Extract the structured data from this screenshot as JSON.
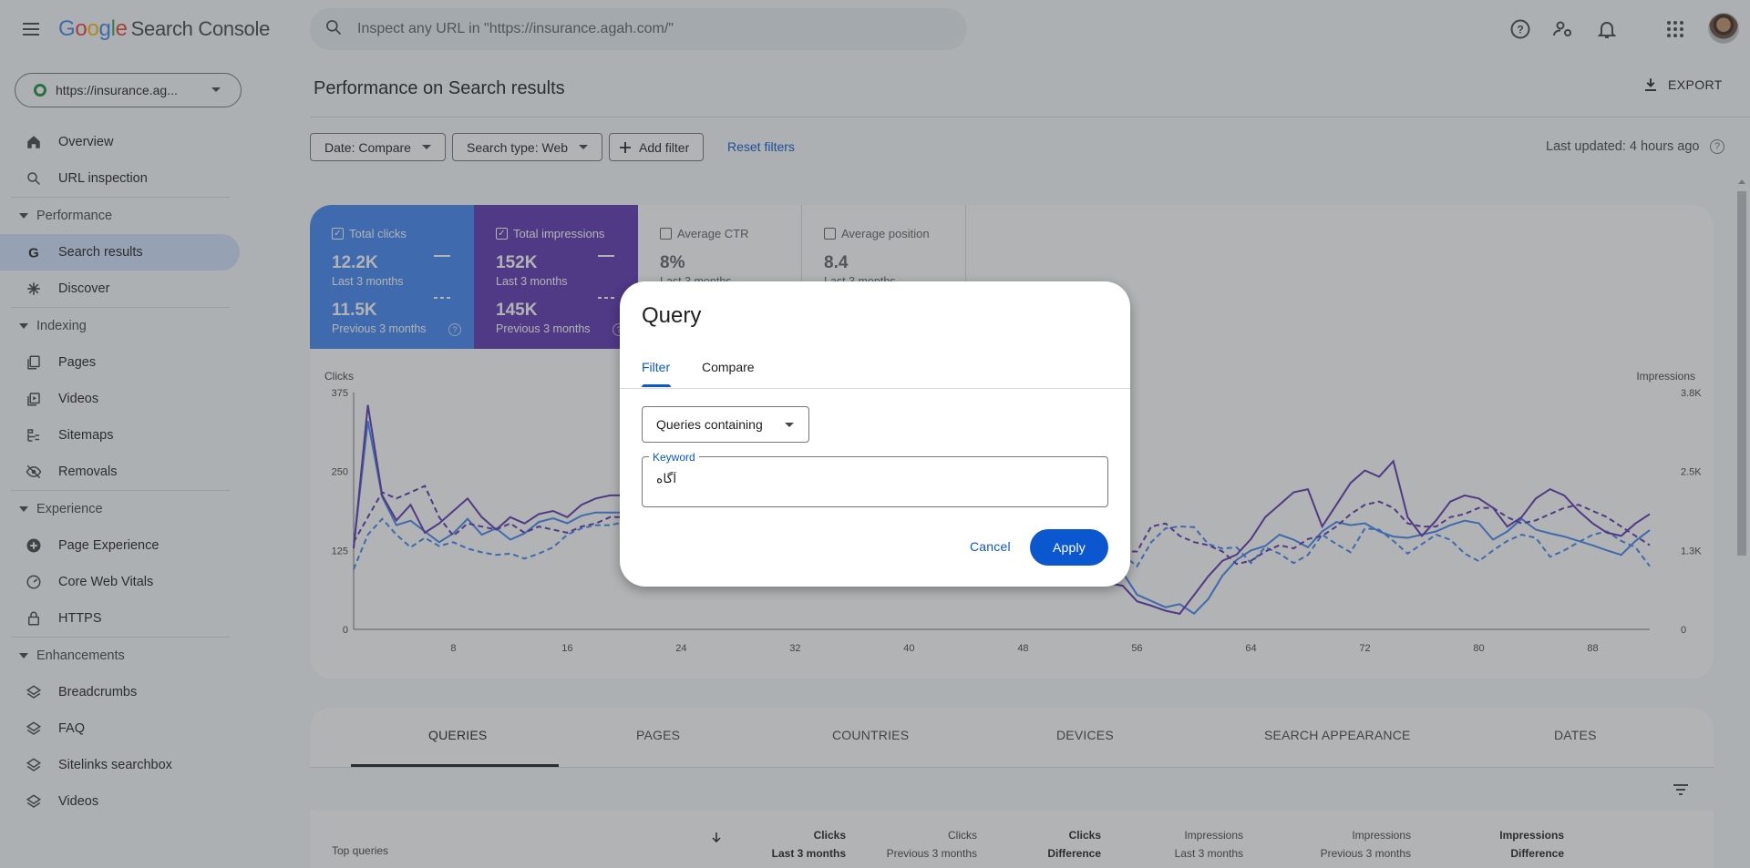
{
  "app": {
    "title": "Search Console",
    "search_placeholder": "Inspect any URL in \"https://insurance.agah.com/\""
  },
  "property": {
    "label": "https://insurance.ag..."
  },
  "sidebar": {
    "items": [
      {
        "label": "Overview",
        "icon": "home-icon"
      },
      {
        "label": "URL inspection",
        "icon": "search-icon"
      }
    ],
    "sections": [
      {
        "title": "Performance",
        "items": [
          {
            "label": "Search results",
            "icon": "google-g-icon",
            "active": true
          },
          {
            "label": "Discover",
            "icon": "asterisk-icon"
          }
        ]
      },
      {
        "title": "Indexing",
        "items": [
          {
            "label": "Pages",
            "icon": "pages-icon"
          },
          {
            "label": "Videos",
            "icon": "video-icon"
          },
          {
            "label": "Sitemaps",
            "icon": "sitemap-icon"
          },
          {
            "label": "Removals",
            "icon": "eye-off-icon"
          }
        ]
      },
      {
        "title": "Experience",
        "items": [
          {
            "label": "Page Experience",
            "icon": "plus-circle-icon"
          },
          {
            "label": "Core Web Vitals",
            "icon": "gauge-icon"
          },
          {
            "label": "HTTPS",
            "icon": "lock-icon"
          }
        ]
      },
      {
        "title": "Enhancements",
        "items": [
          {
            "label": "Breadcrumbs",
            "icon": "layers-icon"
          },
          {
            "label": "FAQ",
            "icon": "layers-icon"
          },
          {
            "label": "Sitelinks searchbox",
            "icon": "layers-icon"
          },
          {
            "label": "Videos",
            "icon": "layers-icon"
          }
        ]
      }
    ]
  },
  "main": {
    "title": "Performance on Search results",
    "export_label": "EXPORT",
    "filters": {
      "date": "Date: Compare",
      "search_type": "Search type: Web",
      "add_filter": "Add filter",
      "reset": "Reset filters"
    },
    "last_updated": "Last updated: 4 hours ago",
    "metrics": [
      {
        "label": "Total clicks",
        "checked": true,
        "current": "12.2K",
        "current_period": "Last 3 months",
        "previous": "11.5K",
        "previous_period": "Previous 3 months"
      },
      {
        "label": "Total impressions",
        "checked": true,
        "current": "152K",
        "current_period": "Last 3 months",
        "previous": "145K",
        "previous_period": "Previous 3 months"
      },
      {
        "label": "Average CTR",
        "checked": false,
        "current": "8%",
        "current_period": "Last 3 months"
      },
      {
        "label": "Average position",
        "checked": false,
        "current": "8.4",
        "current_period": "Last 3 months"
      }
    ],
    "tabs": [
      "QUERIES",
      "PAGES",
      "COUNTRIES",
      "DEVICES",
      "SEARCH APPEARANCE",
      "DATES"
    ],
    "table": {
      "first_col": "Top queries",
      "columns": [
        {
          "line1": "Clicks",
          "line2": "Last 3 months",
          "sorted": true
        },
        {
          "line1": "Clicks",
          "line2": "Previous 3 months"
        },
        {
          "line1": "Clicks",
          "line2": "Difference"
        },
        {
          "line1": "Impressions",
          "line2": "Last 3 months"
        },
        {
          "line1": "Impressions",
          "line2": "Previous 3 months"
        },
        {
          "line1": "Impressions",
          "line2": "Difference"
        }
      ]
    }
  },
  "chart_data": {
    "type": "line",
    "ylabel_left": "Clicks",
    "ylabel_right": "Impressions",
    "yticks_left": [
      "0",
      "125",
      "250",
      "375"
    ],
    "yticks_right": [
      "0",
      "1.3K",
      "2.5K",
      "3.8K"
    ],
    "ylim_left": [
      0,
      375
    ],
    "ylim_right": [
      0,
      3800
    ],
    "xticks": [
      "8",
      "16",
      "24",
      "32",
      "40",
      "48",
      "56",
      "64",
      "72",
      "80",
      "88"
    ],
    "xlim": [
      1,
      92
    ],
    "colors": {
      "clicks": "#4285f4",
      "impressions": "#5e35b1"
    },
    "series": [
      {
        "name": "Clicks",
        "period": "Last 3 months",
        "style": "solid",
        "axis": "left",
        "x": [
          1,
          2,
          3,
          4,
          5,
          6,
          7,
          8,
          9,
          10,
          11,
          12,
          13,
          14,
          15,
          16,
          17,
          18,
          19,
          20,
          21,
          22,
          55,
          56,
          57,
          58,
          59,
          60,
          61,
          62,
          63,
          64,
          65,
          66,
          67,
          68,
          69,
          70,
          71,
          72,
          73,
          74,
          75,
          76,
          77,
          78,
          79,
          80,
          81,
          82,
          83,
          84,
          85,
          86,
          87,
          88,
          89,
          90,
          91,
          92
        ],
        "y": [
          130,
          330,
          210,
          165,
          172,
          155,
          138,
          152,
          175,
          150,
          160,
          142,
          152,
          170,
          176,
          168,
          180,
          185,
          185,
          185,
          182,
          180,
          90,
          55,
          45,
          35,
          40,
          25,
          48,
          85,
          110,
          125,
          132,
          150,
          142,
          130,
          155,
          170,
          165,
          168,
          155,
          147,
          145,
          150,
          155,
          165,
          172,
          168,
          142,
          155,
          175,
          158,
          152,
          147,
          140,
          133,
          125,
          118,
          140,
          157
        ]
      },
      {
        "name": "Clicks",
        "period": "Previous 3 months",
        "style": "dashed",
        "axis": "left",
        "x": [
          1,
          2,
          3,
          4,
          5,
          6,
          7,
          8,
          9,
          10,
          11,
          12,
          13,
          14,
          15,
          16,
          17,
          18,
          19,
          20,
          21,
          22,
          55,
          56,
          57,
          58,
          59,
          60,
          61,
          62,
          63,
          64,
          65,
          66,
          67,
          68,
          69,
          70,
          71,
          72,
          73,
          74,
          75,
          76,
          77,
          78,
          79,
          80,
          81,
          82,
          83,
          84,
          85,
          86,
          87,
          88,
          89,
          90,
          91,
          92
        ],
        "y": [
          95,
          150,
          175,
          150,
          130,
          145,
          132,
          138,
          128,
          122,
          118,
          120,
          112,
          120,
          130,
          150,
          160,
          165,
          165,
          170,
          172,
          170,
          118,
          100,
          138,
          160,
          163,
          162,
          135,
          128,
          130,
          105,
          130,
          120,
          105,
          118,
          150,
          135,
          122,
          160,
          158,
          140,
          120,
          135,
          150,
          142,
          120,
          108,
          125,
          140,
          150,
          145,
          115,
          125,
          138,
          150,
          155,
          140,
          130,
          100
        ]
      },
      {
        "name": "Impressions",
        "period": "Last 3 months",
        "style": "solid",
        "axis": "right",
        "x": [
          1,
          2,
          3,
          4,
          5,
          6,
          7,
          8,
          9,
          10,
          11,
          12,
          13,
          14,
          15,
          16,
          17,
          18,
          19,
          20,
          21,
          22,
          55,
          56,
          57,
          58,
          59,
          60,
          61,
          62,
          63,
          64,
          65,
          66,
          67,
          68,
          69,
          70,
          71,
          72,
          73,
          74,
          75,
          76,
          77,
          78,
          79,
          80,
          81,
          82,
          83,
          84,
          85,
          86,
          87,
          88,
          89,
          90,
          91,
          92
        ],
        "y": [
          1300,
          3600,
          2150,
          1750,
          2000,
          1550,
          1700,
          1900,
          2100,
          1800,
          1600,
          1800,
          1700,
          1850,
          1900,
          1800,
          2000,
          2100,
          2150,
          2150,
          2120,
          2100,
          700,
          450,
          380,
          300,
          250,
          550,
          850,
          1100,
          1200,
          1450,
          1800,
          2000,
          2200,
          2250,
          1650,
          2000,
          2350,
          2550,
          2450,
          2700,
          1800,
          1500,
          1750,
          2050,
          2150,
          2100,
          1950,
          1650,
          1800,
          2100,
          2250,
          2150,
          1900,
          1700,
          1550,
          1500,
          1700,
          1850
        ]
      },
      {
        "name": "Impressions",
        "period": "Previous 3 months",
        "style": "dashed",
        "axis": "right",
        "x": [
          1,
          2,
          3,
          4,
          5,
          6,
          7,
          8,
          9,
          10,
          11,
          12,
          13,
          14,
          15,
          16,
          17,
          18,
          19,
          20,
          21,
          22,
          55,
          56,
          57,
          58,
          59,
          60,
          61,
          62,
          63,
          64,
          65,
          66,
          67,
          68,
          69,
          70,
          71,
          72,
          73,
          74,
          75,
          76,
          77,
          78,
          79,
          80,
          81,
          82,
          83,
          84,
          85,
          86,
          87,
          88,
          89,
          90,
          91,
          92
        ],
        "y": [
          1400,
          1800,
          2200,
          2100,
          2200,
          2300,
          1800,
          1500,
          1700,
          1650,
          1600,
          1700,
          1550,
          1650,
          1600,
          1550,
          1650,
          1700,
          1800,
          1800,
          1850,
          1800,
          1250,
          1250,
          1650,
          1700,
          1500,
          1400,
          1350,
          1250,
          1050,
          1100,
          1250,
          1350,
          1300,
          1450,
          1500,
          1650,
          1850,
          2000,
          2050,
          1950,
          1700,
          1650,
          1650,
          1800,
          1850,
          1950,
          1950,
          1800,
          1700,
          1750,
          1850,
          1950,
          2000,
          1900,
          1800,
          1650,
          1500,
          1350
        ]
      }
    ]
  },
  "dialog": {
    "title": "Query",
    "tabs": [
      "Filter",
      "Compare"
    ],
    "select": "Queries containing",
    "keyword_label": "Keyword",
    "keyword_value": "آگاه",
    "cancel": "Cancel",
    "apply": "Apply"
  }
}
